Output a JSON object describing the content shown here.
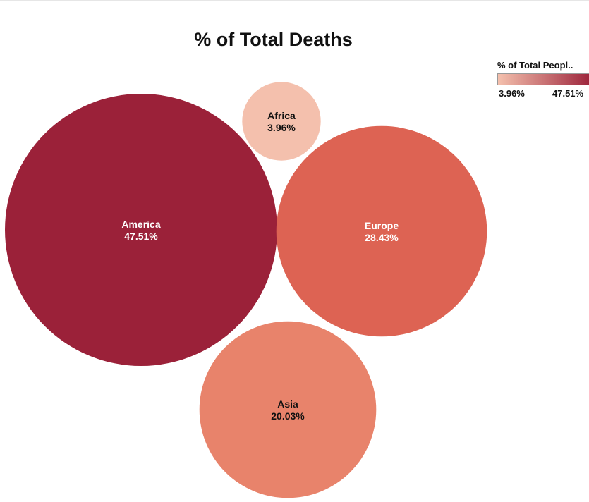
{
  "chart_data": {
    "type": "bubble",
    "title": "% of Total Deaths",
    "legend": {
      "title": "% of Total Peopl..",
      "min_label": "3.96%",
      "max_label": "47.51%",
      "color_min": "#f4c0ad",
      "color_max": "#9b2139",
      "placement": "top-right"
    },
    "points": [
      {
        "category": "America",
        "value": 47.51,
        "label": "47.51%",
        "color": "#9b2139",
        "text_color": "#ffffff"
      },
      {
        "category": "Europe",
        "value": 28.43,
        "label": "28.43%",
        "color": "#dd6353",
        "text_color": "#ffffff"
      },
      {
        "category": "Asia",
        "value": 20.03,
        "label": "20.03%",
        "color": "#e8836b",
        "text_color": "#111111"
      },
      {
        "category": "Africa",
        "value": 3.96,
        "label": "3.96%",
        "color": "#f4c0ad",
        "text_color": "#111111"
      }
    ]
  }
}
